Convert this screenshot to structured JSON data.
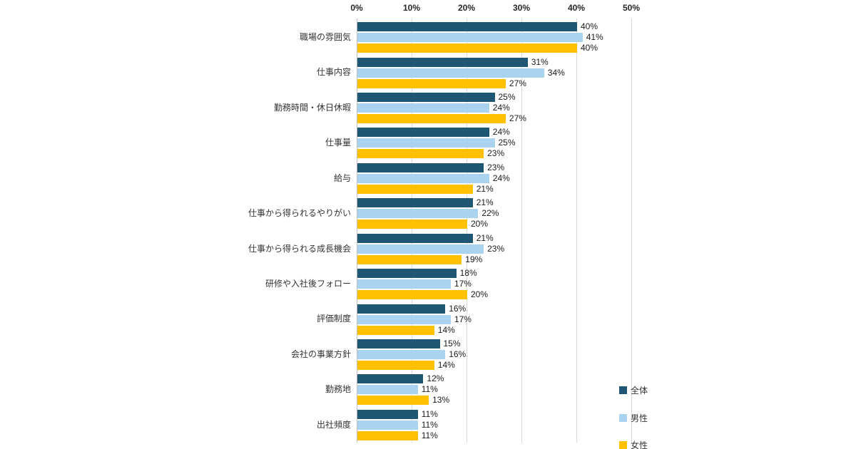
{
  "chart_data": {
    "type": "bar",
    "orientation": "horizontal",
    "value_suffix": "%",
    "xlim": [
      0,
      50
    ],
    "x_ticks": [
      "0%",
      "10%",
      "20%",
      "30%",
      "40%",
      "50%"
    ],
    "grid": true,
    "legend_position": "bottom-right",
    "categories": [
      "職場の雰囲気",
      "仕事内容",
      "勤務時間・休日休暇",
      "仕事量",
      "給与",
      "仕事から得られるやりがい",
      "仕事から得られる成長機会",
      "研修や入社後フォロー",
      "評価制度",
      "会社の事業方針",
      "勤務地",
      "出社頻度"
    ],
    "series": [
      {
        "name": "全体",
        "key": "overall",
        "color": "#1f5673",
        "values": [
          40,
          31,
          25,
          24,
          23,
          21,
          21,
          18,
          16,
          15,
          12,
          11
        ]
      },
      {
        "name": "男性",
        "key": "male",
        "color": "#a9d3ee",
        "values": [
          41,
          34,
          24,
          25,
          24,
          22,
          23,
          17,
          17,
          16,
          11,
          11
        ]
      },
      {
        "name": "女性",
        "key": "female",
        "color": "#ffc000",
        "values": [
          40,
          27,
          27,
          23,
          21,
          20,
          19,
          20,
          14,
          14,
          13,
          11
        ]
      }
    ],
    "colors": {
      "grid": "#d9d9d9",
      "axis": "#bfbfbf",
      "text": "#333333"
    }
  }
}
